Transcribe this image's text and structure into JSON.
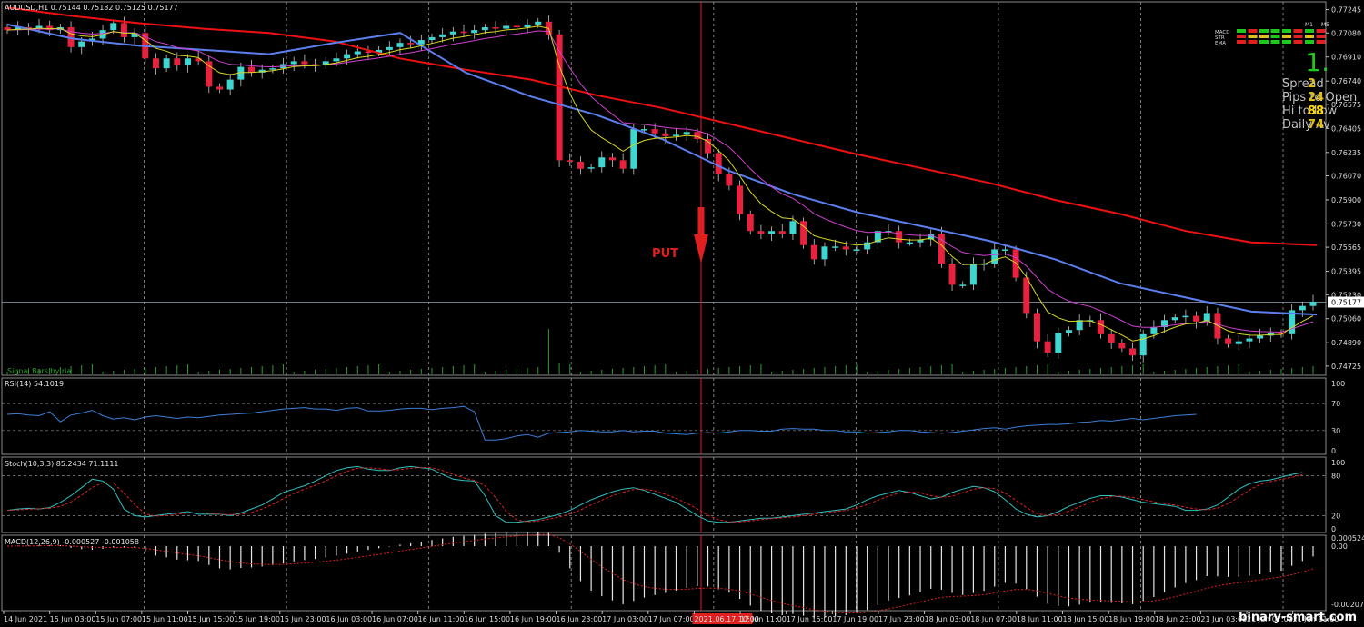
{
  "chart_data": {
    "type": "candlestick",
    "symbol_header": "AUDUSD,H1  0.75144 0.75182 0.75125 0.75177",
    "price_axis": {
      "ylim": [
        0.7466,
        0.773
      ],
      "ticks": [
        "0.77245",
        "0.77080",
        "0.76910",
        "0.76740",
        "0.76575",
        "0.76405",
        "0.76235",
        "0.76070",
        "0.75900",
        "0.75730",
        "0.75565",
        "0.75395",
        "0.75230",
        "0.75060",
        "0.74890",
        "0.74725"
      ],
      "current_price": "0.75177"
    },
    "time_labels": [
      "14 Jun 2021",
      "15 Jun 03:00",
      "15 Jun 07:00",
      "15 Jun 11:00",
      "15 Jun 15:00",
      "15 Jun 19:00",
      "15 Jun 23:00",
      "16 Jun 03:00",
      "16 Jun 07:00",
      "16 Jun 11:00",
      "16 Jun 15:00",
      "16 Jun 19:00",
      "16 Jun 23:00",
      "17 Jun 03:00",
      "17 Jun 07:00",
      "2021.06.17 10:00",
      "17 Jun 11:00",
      "17 Jun 15:00",
      "17 Jun 19:00",
      "17 Jun 23:00",
      "18 Jun 03:00",
      "18 Jun 07:00",
      "18 Jun 11:00",
      "18 Jun 15:00",
      "18 Jun 19:00",
      "18 Jun 23:00",
      "21 Jun 03:00",
      "21 Jun 07:00",
      "21 Jun 11:00"
    ],
    "highlighted_time": "2021.06.17 10:00",
    "signal_text": "PUT",
    "signal_bars_label": "Signal Bars by ria",
    "close_series": [
      0.771,
      0.7712,
      0.7711,
      0.7713,
      0.771,
      0.7712,
      0.7698,
      0.7702,
      0.7704,
      0.771,
      0.7715,
      0.7705,
      0.7708,
      0.769,
      0.7683,
      0.769,
      0.7685,
      0.769,
      0.7688,
      0.767,
      0.7668,
      0.7675,
      0.7684,
      0.768,
      0.7682,
      0.7683,
      0.7686,
      0.7688,
      0.7686,
      0.7685,
      0.7688,
      0.769,
      0.7693,
      0.7695,
      0.7694,
      0.7696,
      0.7698,
      0.7701,
      0.77,
      0.7703,
      0.7705,
      0.7707,
      0.7709,
      0.7708,
      0.771,
      0.7712,
      0.7711,
      0.7713,
      0.7712,
      0.7714,
      0.7716,
      0.7707,
      0.7618,
      0.7617,
      0.7612,
      0.7613,
      0.762,
      0.7618,
      0.7612,
      0.764,
      0.764,
      0.7637,
      0.7635,
      0.7636,
      0.7638,
      0.7633,
      0.7623,
      0.7608,
      0.76,
      0.758,
      0.7568,
      0.7566,
      0.7568,
      0.7566,
      0.7575,
      0.7558,
      0.7548,
      0.7557,
      0.7557,
      0.7555,
      0.7555,
      0.756,
      0.7568,
      0.7568,
      0.756,
      0.756,
      0.7562,
      0.7566,
      0.7545,
      0.753,
      0.753,
      0.7545,
      0.7545,
      0.7555,
      0.7555,
      0.7535,
      0.751,
      0.749,
      0.7482,
      0.7496,
      0.7498,
      0.7505,
      0.7505,
      0.7495,
      0.7489,
      0.7485,
      0.748,
      0.7495,
      0.75,
      0.7505,
      0.7507,
      0.7508,
      0.7504,
      0.751,
      0.7492,
      0.7488,
      0.749,
      0.7492,
      0.7494,
      0.7496,
      0.7495,
      0.7512,
      0.7515,
      0.7518
    ],
    "ema_slow_red": [
      0.7726,
      0.772,
      0.7715,
      0.7711,
      0.7708,
      0.7702,
      0.769,
      0.7682,
      0.7675,
      0.7664,
      0.7655,
      0.7644,
      0.7633,
      0.7622,
      0.7612,
      0.7602,
      0.759,
      0.758,
      0.7568,
      0.756,
      0.7558
    ],
    "ema_mid_blue": [
      0.7714,
      0.7704,
      0.7699,
      0.7696,
      0.7693,
      0.7701,
      0.7708,
      0.768,
      0.7663,
      0.765,
      0.7633,
      0.7611,
      0.7594,
      0.7581,
      0.7571,
      0.7561,
      0.7548,
      0.7531,
      0.7521,
      0.7511,
      0.7509
    ],
    "rsi": {
      "label": "RSI(14) 54.1019",
      "levels": [
        "70",
        "30"
      ],
      "ticks": [
        "100",
        "70",
        "30",
        "0"
      ],
      "values": [
        54,
        55,
        53,
        52,
        58,
        43,
        53,
        56,
        60,
        52,
        47,
        49,
        46,
        50,
        52,
        50,
        48,
        50,
        49,
        51,
        53,
        54,
        55,
        56,
        58,
        60,
        62,
        63,
        64,
        62,
        62,
        60,
        63,
        64,
        59,
        59,
        60,
        62,
        63,
        63,
        61,
        63,
        64,
        66,
        58,
        16,
        16,
        18,
        22,
        24,
        20,
        26,
        27,
        28,
        30,
        29,
        28,
        28,
        30,
        28,
        29,
        29,
        26,
        25,
        24,
        26,
        27,
        26,
        28,
        30,
        30,
        29,
        29,
        32,
        33,
        32,
        32,
        30,
        30,
        28,
        28,
        26,
        27,
        28,
        30,
        30,
        28,
        27,
        26,
        27,
        29,
        31,
        33,
        34,
        32,
        35,
        37,
        38,
        39,
        39,
        40,
        42,
        43,
        45,
        44,
        46,
        48,
        46,
        48,
        50,
        52,
        53,
        54
      ]
    },
    "stoch": {
      "label": "Stoch(10,3,3) 85.2434 71.1111",
      "levels": [
        "80",
        "20"
      ],
      "ticks": [
        "100",
        "80",
        "20",
        "0"
      ],
      "main": [
        28,
        30,
        31,
        30,
        32,
        40,
        50,
        62,
        75,
        72,
        60,
        30,
        20,
        18,
        20,
        22,
        24,
        26,
        22,
        22,
        22,
        20,
        24,
        30,
        36,
        45,
        55,
        60,
        65,
        72,
        80,
        88,
        92,
        94,
        90,
        88,
        88,
        92,
        94,
        92,
        90,
        82,
        75,
        73,
        72,
        50,
        20,
        10,
        10,
        12,
        14,
        18,
        22,
        28,
        36,
        44,
        50,
        56,
        60,
        62,
        58,
        52,
        46,
        40,
        30,
        20,
        12,
        10,
        10,
        12,
        14,
        16,
        16,
        18,
        20,
        22,
        24,
        26,
        28,
        30,
        36,
        44,
        50,
        54,
        58,
        55,
        50,
        45,
        48,
        55,
        60,
        64,
        62,
        56,
        44,
        30,
        22,
        18,
        20,
        26,
        34,
        40,
        46,
        50,
        50,
        48,
        44,
        40,
        38,
        36,
        34,
        28,
        28,
        30,
        36,
        48,
        60,
        68,
        72,
        74,
        78,
        82,
        85
      ]
    },
    "macd": {
      "label": "MACD(12,26,9) -0.000527 -0.001058",
      "ticks": [
        "0.000524",
        "0.00",
        "-0.00207"
      ]
    },
    "mini_panel": {
      "timeframes": [
        "M1",
        "M5"
      ],
      "rows": [
        "MACD",
        "STR",
        "EMA"
      ],
      "big_value": "1.",
      "stats": [
        {
          "label": "Spread",
          "value": "2"
        },
        {
          "label": "Pips to Open",
          "value": "24"
        },
        {
          "label": "Hi to Low",
          "value": "88"
        },
        {
          "label": "Daily Av",
          "value": "74"
        }
      ]
    },
    "watermark": "binary-smart.com"
  },
  "colors": {
    "bull": "#3ed6d0",
    "bear": "#e8213f",
    "ema_slow": "#ee1111",
    "ema_mid": "#5c7ff0",
    "ema_fast_magenta": "#d040d0",
    "ema_fast_yellow": "#d8d820",
    "signal": "#e02020",
    "volume": "#2ca02c"
  }
}
